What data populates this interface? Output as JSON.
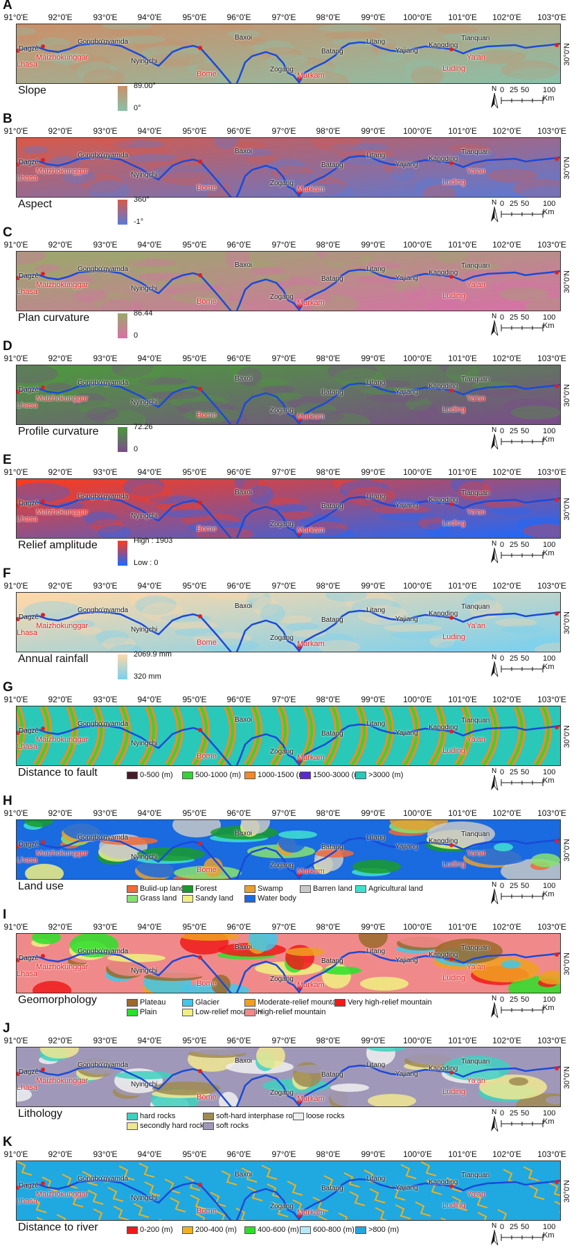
{
  "longitudes": [
    "91°0'E",
    "92°0'E",
    "93°0'E",
    "94°0'E",
    "95°0'E",
    "96°0'E",
    "97°0'E",
    "98°0'E",
    "99°0'E",
    "100°0'E",
    "101°0'E",
    "102°0'E",
    "103°0'E"
  ],
  "latitude": "30°0'N",
  "scale": {
    "ticks": [
      "0",
      "25",
      "50",
      "100 Km"
    ],
    "north": "N"
  },
  "places_white": [
    "Dagzê",
    "Gongbo'gyamda",
    "Nyingchi",
    "Baxoi",
    "Zogang",
    "Batang",
    "Litang",
    "Yajiang",
    "Kangding",
    "Tianquan"
  ],
  "places_red": [
    "Lhasa",
    "Maizhokunggar",
    "Bome",
    "Markam",
    "Luding",
    "Ya'an"
  ],
  "panels": [
    {
      "letter": "A",
      "title": "Slope",
      "hi": "89.00°",
      "lo": "0°",
      "colors": [
        "#c9906a",
        "#8cc0a8"
      ]
    },
    {
      "letter": "B",
      "title": "Aspect",
      "hi": "360°",
      "lo": "-1°",
      "colors": [
        "#d65a4a",
        "#5a7ad6"
      ]
    },
    {
      "letter": "C",
      "title": "Plan curvature",
      "hi": "86.44",
      "lo": "0",
      "colors": [
        "#9aa86a",
        "#d870a8"
      ]
    },
    {
      "letter": "D",
      "title": "Profile curvature",
      "hi": "72.26",
      "lo": "0",
      "colors": [
        "#4c9a3c",
        "#7a4c8a"
      ]
    },
    {
      "letter": "E",
      "title": "Relief amplitude",
      "hi": "High : 1903",
      "lo": "Low : 0",
      "colors": [
        "#ff3a1a",
        "#1a6aff"
      ]
    },
    {
      "letter": "F",
      "title": "Annual rainfall",
      "hi": "2069.9 mm",
      "lo": "320 mm",
      "colors": [
        "#ffd8a8",
        "#78d0f0"
      ]
    },
    {
      "letter": "G",
      "title": "Distance to fault",
      "legend": [
        [
          "0-500 (m)",
          "#4a1a2a"
        ],
        [
          "500-1000 (m)",
          "#3ad03a"
        ],
        [
          "1000-1500 (m)",
          "#f08a2a"
        ],
        [
          "1500-3000 (m)",
          "#5a2ad0"
        ],
        [
          ">3000 (m)",
          "#2ac8b8"
        ]
      ]
    },
    {
      "letter": "H",
      "title": "Land use",
      "legend": [
        [
          "Bulid-up land",
          "#f06a3a"
        ],
        [
          "Forest",
          "#1a9a2a"
        ],
        [
          "Swamp",
          "#e8a030"
        ],
        [
          "Barren land",
          "#c8c8c8"
        ],
        [
          "Agricultural land",
          "#40e0d0"
        ],
        [
          "Grass land",
          "#88e070"
        ],
        [
          "Sandy land",
          "#f0f080"
        ],
        [
          "Water body",
          "#1a6ae0"
        ]
      ]
    },
    {
      "letter": "I",
      "title": "Geomorphology",
      "legend": [
        [
          "Plateau",
          "#9a6a2a"
        ],
        [
          "Glacier",
          "#40c8e8"
        ],
        [
          "Moderate-relief mountain",
          "#f0a020"
        ],
        [
          "Very high-relief mountain",
          "#f01a1a"
        ],
        [
          "Plain",
          "#2ae02a"
        ],
        [
          "Low-relief mountain",
          "#f0f080"
        ],
        [
          "High-relief mountain",
          "#f08a8a"
        ]
      ]
    },
    {
      "letter": "J",
      "title": "Lithology",
      "legend": [
        [
          "hard rocks",
          "#40d0c0"
        ],
        [
          "soft-hard interphase rocks",
          "#a08a50"
        ],
        [
          "loose rocks",
          "#f0f0f0"
        ],
        [
          "secondly hard rock",
          "#f0e890"
        ],
        [
          "soft rocks",
          "#a098b8"
        ]
      ]
    },
    {
      "letter": "K",
      "title": "Distance to river",
      "legend": [
        [
          "0-200 (m)",
          "#f01a1a"
        ],
        [
          "200-400 (m)",
          "#f0b020"
        ],
        [
          "400-600 (m)",
          "#2ae02a"
        ],
        [
          "600-800 (m)",
          "#b8e8f8"
        ],
        [
          ">800 (m)",
          "#20a8e0"
        ]
      ]
    }
  ]
}
